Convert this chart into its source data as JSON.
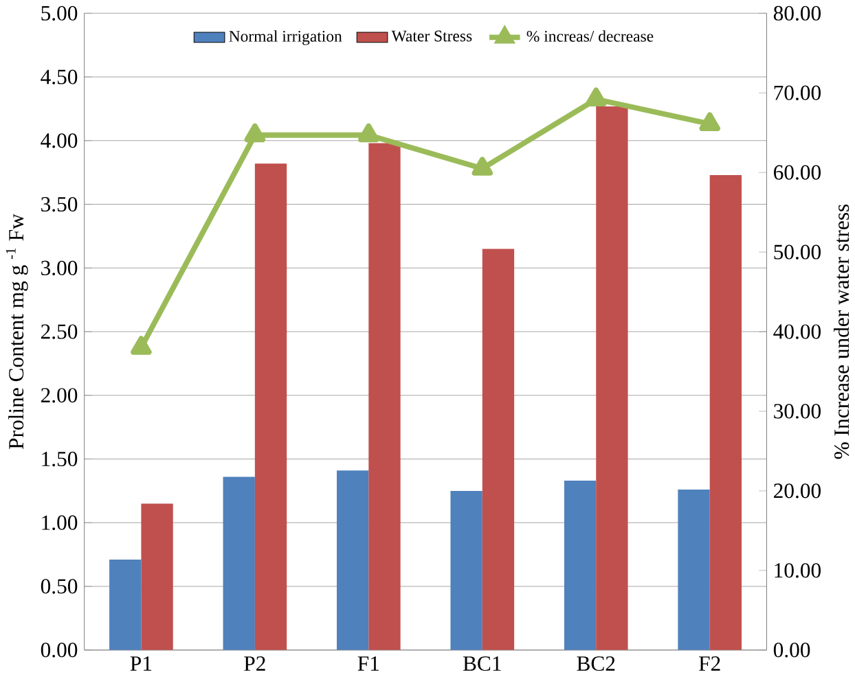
{
  "chart_data": {
    "type": "bar",
    "categories": [
      "P1",
      "P2",
      "F1",
      "BC1",
      "BC2",
      "F2"
    ],
    "ylabel": "Proline Content mg g $^{-1}$ Fw",
    "y2label": "% Increase  under water stress",
    "ylim": [
      0,
      5
    ],
    "yticks": [
      {
        "value": 0,
        "label": "0.00"
      },
      {
        "value": 0.5,
        "label": "0.50"
      },
      {
        "value": 1,
        "label": "1.00"
      },
      {
        "value": 1.5,
        "label": "1.50"
      },
      {
        "value": 2,
        "label": "2.00"
      },
      {
        "value": 2.5,
        "label": "2.50"
      },
      {
        "value": 3,
        "label": "3.00"
      },
      {
        "value": 3.5,
        "label": "3.50"
      },
      {
        "value": 4,
        "label": "4.00"
      },
      {
        "value": 4.5,
        "label": "4.50"
      },
      {
        "value": 5,
        "label": "5.00"
      }
    ],
    "y2lim": [
      0,
      80
    ],
    "y2ticks": [
      {
        "value": 0,
        "label": "0.00"
      },
      {
        "value": 10,
        "label": "10.00"
      },
      {
        "value": 20,
        "label": "20.00"
      },
      {
        "value": 30,
        "label": "30.00"
      },
      {
        "value": 40,
        "label": "40.00"
      },
      {
        "value": 50,
        "label": "50.00"
      },
      {
        "value": 60,
        "label": "60.00"
      },
      {
        "value": 70,
        "label": "70.00"
      },
      {
        "value": 80,
        "label": "80.00"
      }
    ],
    "grid": "y",
    "legend": "top",
    "marker": "triangle",
    "series": [
      {
        "name": "Normal irrigation",
        "color": "#4f81bd",
        "values": [
          0.71,
          1.36,
          1.41,
          1.25,
          1.33,
          1.26
        ]
      },
      {
        "name": "Water Stress",
        "color": "#c0504d",
        "values": [
          1.15,
          3.82,
          3.98,
          3.15,
          4.27,
          3.73
        ]
      },
      {
        "name": "% increas/ decrease",
        "type": "line",
        "axis": "y2",
        "color": "#9bbb59",
        "values": [
          38.0,
          64.7,
          64.7,
          60.5,
          69.2,
          66.1
        ]
      }
    ]
  }
}
